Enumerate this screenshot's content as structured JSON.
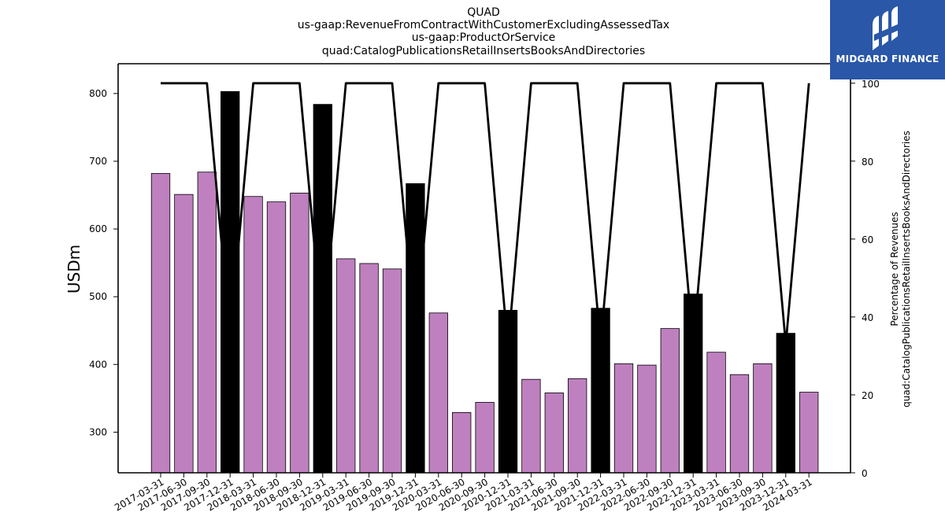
{
  "chart_data": {
    "type": "bar",
    "title_lines": [
      "QUAD",
      "us-gaap:RevenueFromContractWithCustomerExcludingAssessedTax",
      "us-gaap:ProductOrService",
      "quad:CatalogPublicationsRetailInsertsBooksAndDirectories"
    ],
    "ylabel": "USDm",
    "ylabel_right": [
      "Percentage of Revenues",
      "quad:CatalogPublicationsRetailInsertsBooksAndDirectories"
    ],
    "ylim": [
      240,
      844
    ],
    "ylim_right": [
      0,
      105
    ],
    "yticks": [
      300,
      400,
      500,
      600,
      700,
      800
    ],
    "yticks_right": [
      0,
      20,
      40,
      60,
      80,
      100
    ],
    "categories": [
      "2017-03-31",
      "2017-06-30",
      "2017-09-30",
      "2017-12-31",
      "2018-03-31",
      "2018-06-30",
      "2018-09-30",
      "2018-12-31",
      "2019-03-31",
      "2019-06-30",
      "2019-09-30",
      "2019-12-31",
      "2020-03-31",
      "2020-06-30",
      "2020-09-30",
      "2020-12-31",
      "2021-03-31",
      "2021-06-30",
      "2021-09-30",
      "2021-12-31",
      "2022-03-31",
      "2022-06-30",
      "2022-09-30",
      "2022-12-31",
      "2023-03-31",
      "2023-06-30",
      "2023-09-30",
      "2023-12-31",
      "2024-03-31"
    ],
    "values": [
      682,
      651,
      684,
      803,
      648,
      640,
      653,
      784,
      556,
      549,
      541,
      667,
      476,
      329,
      344,
      480,
      378,
      358,
      379,
      483,
      401,
      399,
      453,
      504,
      418,
      385,
      401,
      446,
      359
    ],
    "is_annual": [
      false,
      false,
      false,
      true,
      false,
      false,
      false,
      true,
      false,
      false,
      false,
      true,
      false,
      false,
      false,
      true,
      false,
      false,
      false,
      true,
      false,
      false,
      false,
      true,
      false,
      false,
      false,
      true,
      false
    ],
    "percentage_line": [
      100,
      100,
      100,
      35,
      100,
      100,
      100,
      35,
      100,
      100,
      100,
      35,
      100,
      100,
      100,
      32,
      100,
      100,
      100,
      33,
      100,
      100,
      100,
      33,
      100,
      100,
      100,
      33,
      100
    ],
    "colors": {
      "quarter_bar": "#bf80bf",
      "annual_bar": "#000000",
      "line": "#000000"
    }
  },
  "logo": {
    "text": "MIDGARD FINANCE",
    "bg": "#2a57a8"
  }
}
